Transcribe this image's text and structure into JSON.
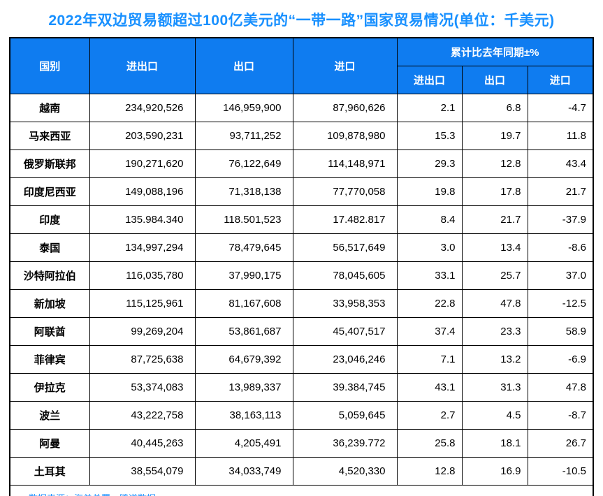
{
  "title": "2022年双边贸易额超过100亿美元的“一带一路”国家贸易情况(单位：千美元)",
  "source_note": "数据来源：海关总署、腾道数据",
  "colors": {
    "title_text": "#1890ff",
    "header_bg": "#0f7cf0",
    "header_text": "#ffffff",
    "border": "#000000",
    "source_text": "#1890ff",
    "background": "#ffffff"
  },
  "table": {
    "headers": {
      "country": "国别",
      "total": "进出口",
      "export": "出口",
      "import": "进口",
      "yoy_group": "累计比去年同期±%",
      "yoy_total": "进出口",
      "yoy_export": "出口",
      "yoy_import": "进口"
    },
    "rows": [
      {
        "country": "越南",
        "total": "234,920,526",
        "export": "146,959,900",
        "import": "87,960,626",
        "yoy_total": "2.1",
        "yoy_export": "6.8",
        "yoy_import": "-4.7"
      },
      {
        "country": "马来西亚",
        "total": "203,590,231",
        "export": "93,711,252",
        "import": "109,878,980",
        "yoy_total": "15.3",
        "yoy_export": "19.7",
        "yoy_import": "11.8"
      },
      {
        "country": "俄罗斯联邦",
        "total": "190,271,620",
        "export": "76,122,649",
        "import": "114,148,971",
        "yoy_total": "29.3",
        "yoy_export": "12.8",
        "yoy_import": "43.4"
      },
      {
        "country": "印度尼西亚",
        "total": "149,088,196",
        "export": "71,318,138",
        "import": "77,770,058",
        "yoy_total": "19.8",
        "yoy_export": "17.8",
        "yoy_import": "21.7"
      },
      {
        "country": "印度",
        "total": "135.984.340",
        "export": "118.501,523",
        "import": "17.482.817",
        "yoy_total": "8.4",
        "yoy_export": "21.7",
        "yoy_import": "-37.9"
      },
      {
        "country": "泰国",
        "total": "134,997,294",
        "export": "78,479,645",
        "import": "56,517,649",
        "yoy_total": "3.0",
        "yoy_export": "13.4",
        "yoy_import": "-8.6"
      },
      {
        "country": "沙特阿拉伯",
        "total": "116,035,780",
        "export": "37,990,175",
        "import": "78,045,605",
        "yoy_total": "33.1",
        "yoy_export": "25.7",
        "yoy_import": "37.0"
      },
      {
        "country": "新加坡",
        "total": "115,125,961",
        "export": "81,167,608",
        "import": "33,958,353",
        "yoy_total": "22.8",
        "yoy_export": "47.8",
        "yoy_import": "-12.5"
      },
      {
        "country": "阿联酋",
        "total": "99,269,204",
        "export": "53,861,687",
        "import": "45,407,517",
        "yoy_total": "37.4",
        "yoy_export": "23.3",
        "yoy_import": "58.9"
      },
      {
        "country": "菲律宾",
        "total": "87,725,638",
        "export": "64,679,392",
        "import": "23,046,246",
        "yoy_total": "7.1",
        "yoy_export": "13.2",
        "yoy_import": "-6.9"
      },
      {
        "country": "伊拉克",
        "total": "53,374,083",
        "export": "13,989,337",
        "import": "39.384,745",
        "yoy_total": "43.1",
        "yoy_export": "31.3",
        "yoy_import": "47.8"
      },
      {
        "country": "波兰",
        "total": "43,222,758",
        "export": "38,163,113",
        "import": "5,059,645",
        "yoy_total": "2.7",
        "yoy_export": "4.5",
        "yoy_import": "-8.7"
      },
      {
        "country": "阿曼",
        "total": "40,445,263",
        "export": "4,205,491",
        "import": "36,239.772",
        "yoy_total": "25.8",
        "yoy_export": "18.1",
        "yoy_import": "26.7"
      },
      {
        "country": "土耳其",
        "total": "38,554,079",
        "export": "34,033,749",
        "import": "4,520,330",
        "yoy_total": "12.8",
        "yoy_export": "16.9",
        "yoy_import": "-10.5"
      }
    ]
  },
  "chart_data": {
    "type": "table",
    "title": "2022年双边贸易额超过100亿美元的“一带一路”国家贸易情况(单位：千美元)",
    "columns": [
      "国别",
      "进出口",
      "出口",
      "进口",
      "累计比去年同期±% 进出口",
      "累计比去年同期±% 出口",
      "累计比去年同期±% 进口"
    ],
    "rows": [
      [
        "越南",
        "234,920,526",
        "146,959,900",
        "87,960,626",
        2.1,
        6.8,
        -4.7
      ],
      [
        "马来西亚",
        "203,590,231",
        "93,711,252",
        "109,878,980",
        15.3,
        19.7,
        11.8
      ],
      [
        "俄罗斯联邦",
        "190,271,620",
        "76,122,649",
        "114,148,971",
        29.3,
        12.8,
        43.4
      ],
      [
        "印度尼西亚",
        "149,088,196",
        "71,318,138",
        "77,770,058",
        19.8,
        17.8,
        21.7
      ],
      [
        "印度",
        "135.984.340",
        "118.501,523",
        "17.482.817",
        8.4,
        21.7,
        -37.9
      ],
      [
        "泰国",
        "134,997,294",
        "78,479,645",
        "56,517,649",
        3.0,
        13.4,
        -8.6
      ],
      [
        "沙特阿拉伯",
        "116,035,780",
        "37,990,175",
        "78,045,605",
        33.1,
        25.7,
        37.0
      ],
      [
        "新加坡",
        "115,125,961",
        "81,167,608",
        "33,958,353",
        22.8,
        47.8,
        -12.5
      ],
      [
        "阿联酋",
        "99,269,204",
        "53,861,687",
        "45,407,517",
        37.4,
        23.3,
        58.9
      ],
      [
        "菲律宾",
        "87,725,638",
        "64,679,392",
        "23,046,246",
        7.1,
        13.2,
        -6.9
      ],
      [
        "伊拉克",
        "53,374,083",
        "13,989,337",
        "39.384,745",
        43.1,
        31.3,
        47.8
      ],
      [
        "波兰",
        "43,222,758",
        "38,163,113",
        "5,059,645",
        2.7,
        4.5,
        -8.7
      ],
      [
        "阿曼",
        "40,445,263",
        "4,205,491",
        "36,239.772",
        25.8,
        18.1,
        26.7
      ],
      [
        "土耳其",
        "38,554,079",
        "34,033,749",
        "4,520,330",
        12.8,
        16.9,
        -10.5
      ]
    ],
    "notes": "数据来源：海关总署、腾道数据"
  }
}
